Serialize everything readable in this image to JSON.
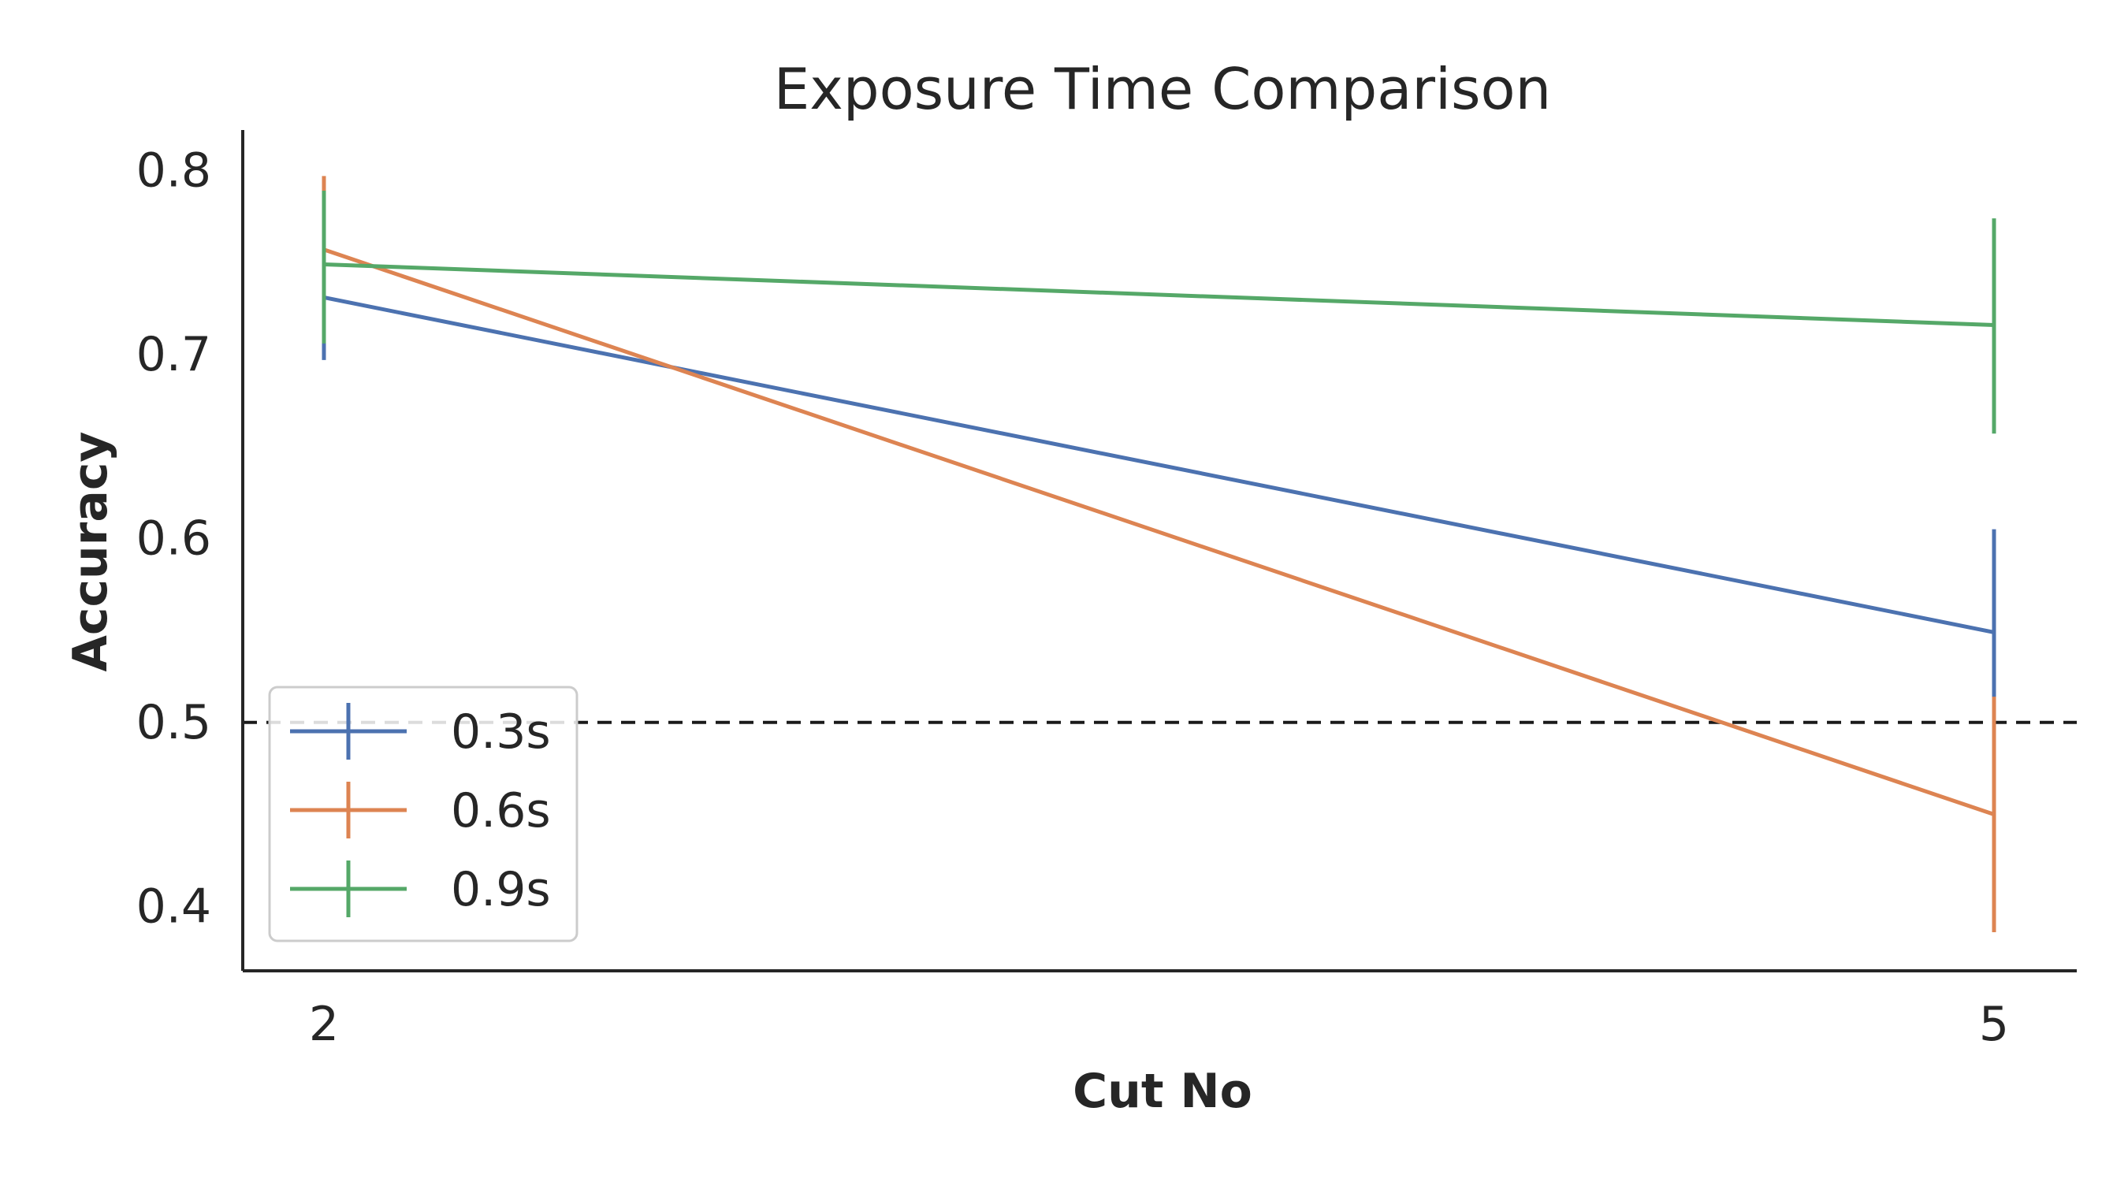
{
  "chart_data": {
    "type": "line",
    "title": "Exposure Time Comparison",
    "xlabel": "Cut No",
    "ylabel": "Accuracy",
    "x": [
      2,
      5
    ],
    "x_tick_labels": [
      "2",
      "5"
    ],
    "y_ticks": [
      0.4,
      0.5,
      0.6,
      0.7,
      0.8
    ],
    "y_tick_labels": [
      "0.4",
      "0.5",
      "0.6",
      "0.7",
      "0.8"
    ],
    "ylim": [
      0.365,
      0.822
    ],
    "grid": false,
    "legend_position": "lower-left",
    "reference_line": {
      "y": 0.5,
      "style": "dashed",
      "color": "#1a1a1a"
    },
    "series": [
      {
        "name": "0.3s",
        "color": "#4c72b0",
        "values": [
          0.731,
          0.549
        ],
        "err_low": [
          0.697,
          0.513
        ],
        "err_high": [
          0.768,
          0.605
        ]
      },
      {
        "name": "0.6s",
        "color": "#dd8452",
        "values": [
          0.757,
          0.45
        ],
        "err_low": [
          0.708,
          0.386
        ],
        "err_high": [
          0.797,
          0.514
        ]
      },
      {
        "name": "0.9s",
        "color": "#55a868",
        "values": [
          0.749,
          0.716
        ],
        "err_low": [
          0.706,
          0.657
        ],
        "err_high": [
          0.789,
          0.774
        ]
      }
    ]
  }
}
